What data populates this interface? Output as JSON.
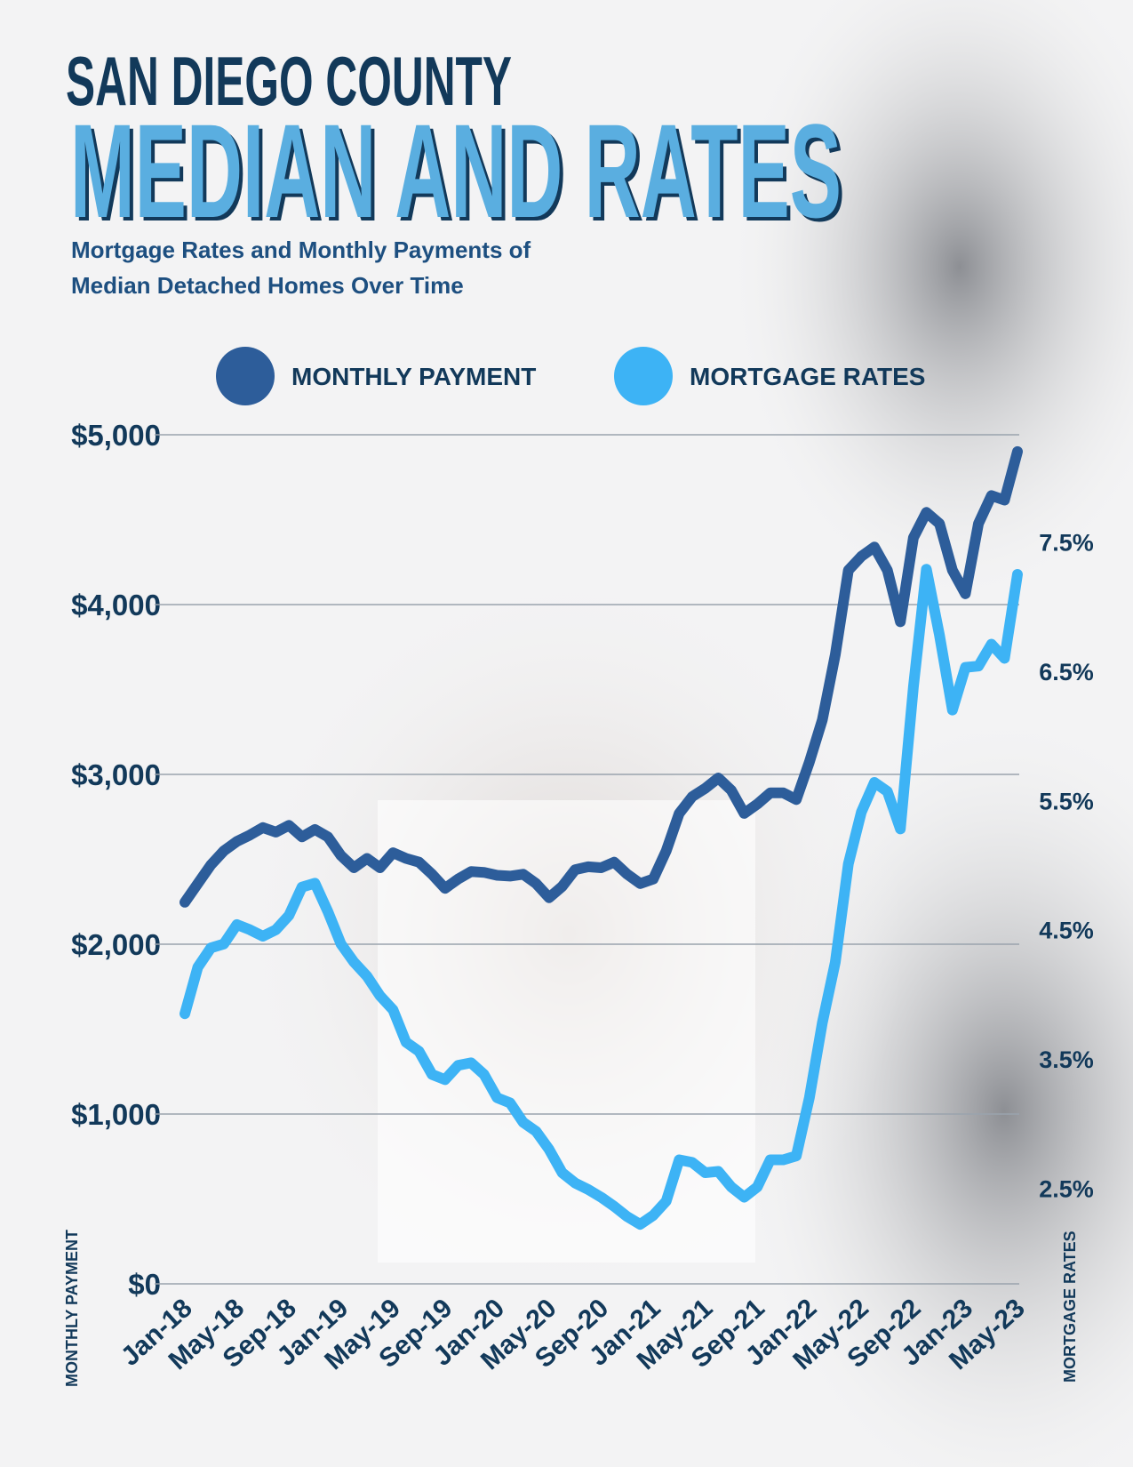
{
  "chart_data": {
    "type": "line",
    "title": "SAN DIEGO COUNTY",
    "headline": "MEDIAN AND RATES",
    "subtitle": [
      "Mortgage Rates and Monthly Payments of",
      "Median Detached Homes Over Time"
    ],
    "y_label": "MONTHLY PAYMENT",
    "y2_label": "MORTGAGE RATES",
    "categories": [
      "Jan-18",
      null,
      null,
      null,
      "May-18",
      null,
      null,
      null,
      "Sep-18",
      null,
      null,
      null,
      "Jan-19",
      null,
      null,
      null,
      "May-19",
      null,
      null,
      null,
      "Sep-19",
      null,
      null,
      null,
      "Jan-20",
      null,
      null,
      null,
      "May-20",
      null,
      null,
      null,
      "Sep-20",
      null,
      null,
      null,
      "Jan-21",
      null,
      null,
      null,
      "May-21",
      null,
      null,
      null,
      "Sep-21",
      null,
      null,
      null,
      "Jan-22",
      null,
      null,
      null,
      "May-22",
      null,
      null,
      null,
      "Sep-22",
      null,
      null,
      null,
      "Jan-23",
      null,
      null,
      null,
      "May-23"
    ],
    "series": [
      {
        "name": "MONTHLY PAYMENT",
        "color": "#2d5d9a",
        "values": [
          2247,
          2357,
          2467,
          2550,
          2605,
          2643,
          2687,
          2660,
          2700,
          2632,
          2676,
          2632,
          2522,
          2450,
          2505,
          2450,
          2539,
          2505,
          2483,
          2412,
          2329,
          2384,
          2428,
          2423,
          2406,
          2401,
          2412,
          2357,
          2274,
          2340,
          2439,
          2456,
          2450,
          2483,
          2412,
          2357,
          2384,
          2550,
          2770,
          2869,
          2918,
          2979,
          2907,
          2770,
          2825,
          2891,
          2891,
          2852,
          3073,
          3321,
          3706,
          4202,
          4284,
          4339,
          4202,
          3899,
          4394,
          4543,
          4477,
          4202,
          4064,
          4477,
          4642,
          4615,
          4901
        ]
      },
      {
        "name": "MORTGAGE RATES",
        "color": "#3db3f5",
        "axis": "y2",
        "values": [
          3.85,
          4.21,
          4.36,
          4.39,
          4.54,
          4.5,
          4.45,
          4.5,
          4.61,
          4.83,
          4.86,
          4.64,
          4.39,
          4.25,
          4.14,
          3.99,
          3.88,
          3.63,
          3.56,
          3.38,
          3.34,
          3.45,
          3.47,
          3.38,
          3.2,
          3.16,
          3.01,
          2.94,
          2.8,
          2.62,
          2.54,
          2.49,
          2.43,
          2.36,
          2.28,
          2.22,
          2.29,
          2.4,
          2.72,
          2.7,
          2.62,
          2.63,
          2.51,
          2.43,
          2.51,
          2.72,
          2.72,
          2.75,
          3.2,
          3.78,
          4.25,
          5.01,
          5.41,
          5.64,
          5.57,
          5.28,
          6.38,
          7.29,
          6.78,
          6.2,
          6.53,
          6.54,
          6.71,
          6.6,
          7.25
        ]
      }
    ],
    "ylim": [
      0,
      5000
    ],
    "yticks": [
      {
        "value": 0,
        "label": "$0"
      },
      {
        "value": 1000,
        "label": "$1,000"
      },
      {
        "value": 2000,
        "label": "$2,000"
      },
      {
        "value": 3000,
        "label": "$3,000"
      },
      {
        "value": 4000,
        "label": "$4,000"
      },
      {
        "value": 5000,
        "label": "$5,000"
      }
    ],
    "y2lim": [
      1.76,
      8.33
    ],
    "y2ticks": [
      {
        "value": 2.5,
        "label": "2.5%"
      },
      {
        "value": 3.5,
        "label": "3.5%"
      },
      {
        "value": 4.5,
        "label": "4.5%"
      },
      {
        "value": 5.5,
        "label": "5.5%"
      },
      {
        "value": 6.5,
        "label": "6.5%"
      },
      {
        "value": 7.5,
        "label": "7.5%"
      }
    ],
    "grid": true
  }
}
